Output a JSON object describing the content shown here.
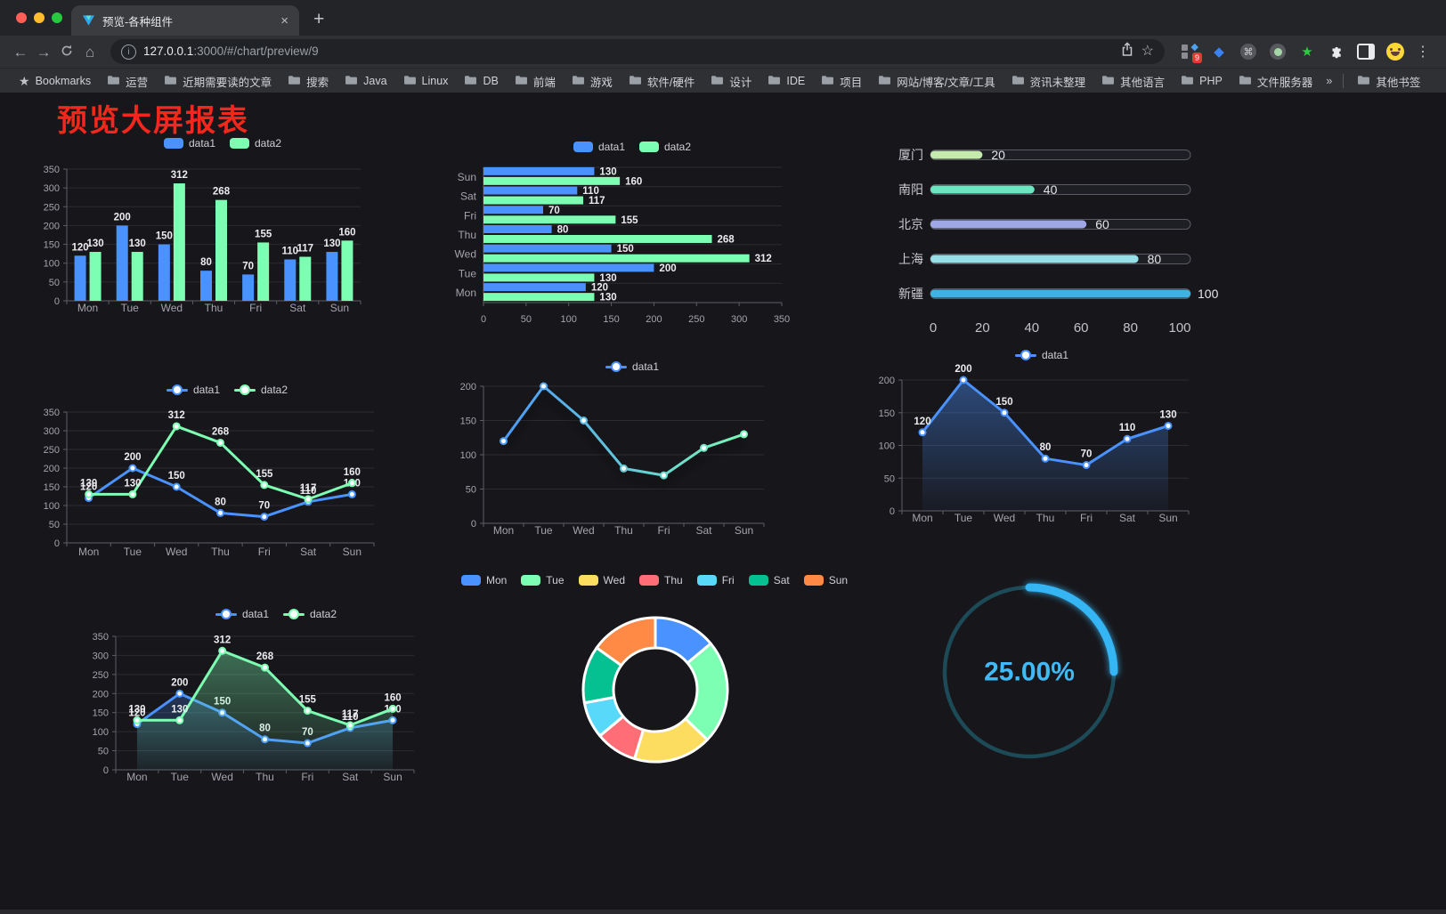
{
  "browser": {
    "tab_title": "预览-各种组件",
    "url_host": "127.0.0.1",
    "url_rest": ":3000/#/chart/preview/9",
    "extension_badge": "9",
    "glyphs": {
      "back": "←",
      "forward": "→",
      "home": "⌂",
      "close": "×",
      "new_tab": "+",
      "menu": "⋮",
      "bookmark_star": "☆",
      "command": "⌘",
      "gem": "◆",
      "green_star": "★",
      "overflow": "»",
      "info": "i"
    },
    "bookmarks": {
      "root": "Bookmarks",
      "folders": [
        "运营",
        "近期需要读的文章",
        "搜索",
        "Java",
        "Linux",
        "DB",
        "前端",
        "游戏",
        "软件/硬件",
        "设计",
        "IDE",
        "项目",
        "网站/博客/文章/工具",
        "资讯未整理",
        "其他语言",
        "PHP",
        "文件服务器"
      ],
      "overflow": "»",
      "other": "其他书签"
    }
  },
  "page": {
    "title": "预览大屏报表",
    "title_color": "#f4271c"
  },
  "chart_data": [
    {
      "id": "bar-grouped",
      "type": "vbar",
      "title": "",
      "categories": [
        "Mon",
        "Tue",
        "Wed",
        "Thu",
        "Fri",
        "Sat",
        "Sun"
      ],
      "ylim": [
        0,
        350
      ],
      "yticks": [
        0,
        50,
        100,
        150,
        200,
        250,
        300,
        350
      ],
      "grid": true,
      "legend_position": "top",
      "series": [
        {
          "name": "data1",
          "color": "#4992ff",
          "values": [
            120,
            200,
            150,
            80,
            70,
            110,
            130
          ]
        },
        {
          "name": "data2",
          "color": "#7cffb2",
          "values": [
            130,
            130,
            312,
            268,
            155,
            117,
            160
          ]
        }
      ]
    },
    {
      "id": "bar-horizontal",
      "type": "hbar",
      "title": "",
      "categories": [
        "Mon",
        "Tue",
        "Wed",
        "Thu",
        "Fri",
        "Sat",
        "Sun"
      ],
      "xlim": [
        0,
        350
      ],
      "xticks": [
        0,
        50,
        100,
        150,
        200,
        250,
        300,
        350
      ],
      "grid": true,
      "legend_position": "top",
      "series": [
        {
          "name": "data1",
          "color": "#4992ff",
          "values": [
            120,
            200,
            150,
            80,
            70,
            110,
            130
          ]
        },
        {
          "name": "data2",
          "color": "#7cffb2",
          "values": [
            130,
            130,
            312,
            268,
            155,
            117,
            160
          ]
        }
      ]
    },
    {
      "id": "progress-bars",
      "type": "progress",
      "max": 100,
      "axis_ticks": [
        0,
        20,
        40,
        60,
        80,
        100
      ],
      "items": [
        {
          "label": "厦门",
          "value": 20,
          "color": "#c4ebad"
        },
        {
          "label": "南阳",
          "value": 40,
          "color": "#6be6c1"
        },
        {
          "label": "北京",
          "value": 60,
          "color": "#a0a7e6"
        },
        {
          "label": "上海",
          "value": 80,
          "color": "#96dee8"
        },
        {
          "label": "新疆",
          "value": 100,
          "color": "#3fb1e3"
        }
      ]
    },
    {
      "id": "line-dual",
      "type": "line",
      "labels": true,
      "categories": [
        "Mon",
        "Tue",
        "Wed",
        "Thu",
        "Fri",
        "Sat",
        "Sun"
      ],
      "ylim": [
        0,
        350
      ],
      "yticks": [
        0,
        50,
        100,
        150,
        200,
        250,
        300,
        350
      ],
      "grid": true,
      "legend_position": "top",
      "series": [
        {
          "name": "data1",
          "color": "#4992ff",
          "values": [
            120,
            200,
            150,
            80,
            70,
            110,
            130
          ]
        },
        {
          "name": "data2",
          "color": "#7cffb2",
          "values": [
            130,
            130,
            312,
            268,
            155,
            117,
            160
          ]
        }
      ]
    },
    {
      "id": "line-gradient",
      "type": "line",
      "labels": false,
      "shadow": true,
      "categories": [
        "Mon",
        "Tue",
        "Wed",
        "Thu",
        "Fri",
        "Sat",
        "Sun"
      ],
      "ylim": [
        0,
        200
      ],
      "yticks": [
        0,
        50,
        100,
        150,
        200
      ],
      "grid": true,
      "legend_position": "top",
      "series": [
        {
          "name": "data1",
          "gradient": [
            "#4992ff",
            "#7cffb2"
          ],
          "values": [
            120,
            200,
            150,
            80,
            70,
            110,
            130
          ]
        }
      ]
    },
    {
      "id": "area-single",
      "type": "line",
      "labels": true,
      "categories": [
        "Mon",
        "Tue",
        "Wed",
        "Thu",
        "Fri",
        "Sat",
        "Sun"
      ],
      "ylim": [
        0,
        200
      ],
      "yticks": [
        0,
        50,
        100,
        150,
        200
      ],
      "grid": true,
      "legend_position": "top",
      "series": [
        {
          "name": "data1",
          "color": "#4992ff",
          "area": true,
          "values": [
            120,
            200,
            150,
            80,
            70,
            110,
            130
          ]
        }
      ]
    },
    {
      "id": "area-dual",
      "type": "line",
      "labels": true,
      "categories": [
        "Mon",
        "Tue",
        "Wed",
        "Thu",
        "Fri",
        "Sat",
        "Sun"
      ],
      "ylim": [
        0,
        350
      ],
      "yticks": [
        0,
        50,
        100,
        150,
        200,
        250,
        300,
        350
      ],
      "grid": true,
      "legend_position": "top",
      "series": [
        {
          "name": "data1",
          "color": "#4992ff",
          "area": true,
          "values": [
            120,
            200,
            150,
            80,
            70,
            110,
            130
          ]
        },
        {
          "name": "data2",
          "color": "#7cffb2",
          "area": true,
          "values": [
            130,
            130,
            312,
            268,
            155,
            117,
            160
          ]
        }
      ]
    },
    {
      "id": "donut",
      "type": "pie",
      "legend_position": "top",
      "categories": [
        "Mon",
        "Tue",
        "Wed",
        "Thu",
        "Fri",
        "Sat",
        "Sun"
      ],
      "values": [
        120,
        200,
        150,
        80,
        70,
        110,
        130
      ],
      "colors": [
        "#4992ff",
        "#7cffb2",
        "#fddd60",
        "#ff6e76",
        "#58d9f9",
        "#05c091",
        "#ff8a45"
      ],
      "border_color": "#ffffff"
    },
    {
      "id": "gauge",
      "type": "gauge",
      "value": 25,
      "label": "25.00%",
      "color": "#35b5f4",
      "track_color": "#1d4a57",
      "text_color": "#41b9f7"
    }
  ]
}
